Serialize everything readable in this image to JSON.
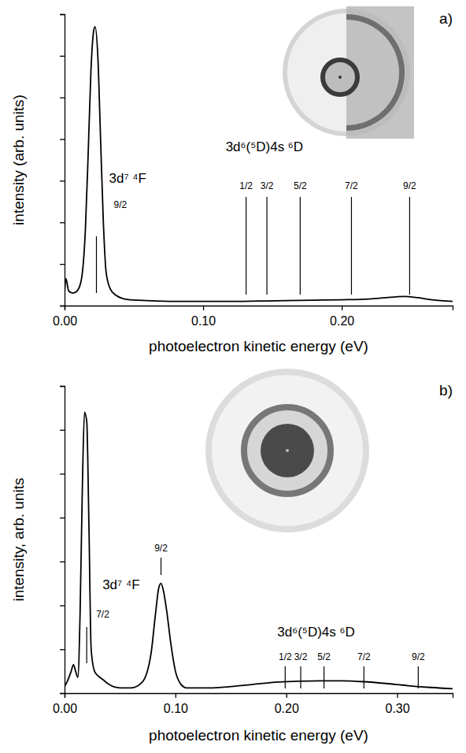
{
  "chart_data": [
    {
      "type": "line",
      "panel_label": "a)",
      "x_label": "photoelectron kinetic energy (eV)",
      "y_label": "intensity (arb. units)",
      "xlim": [
        0,
        0.28
      ],
      "xticks": [
        {
          "value": 0,
          "label": "0.00"
        },
        {
          "value": 0.1,
          "label": "0.10"
        },
        {
          "value": 0.2,
          "label": "0.20"
        }
      ],
      "ylim": [
        0,
        7
      ],
      "yticks": [
        0,
        1,
        2,
        3,
        4,
        5,
        6,
        7
      ],
      "tick_labels": "x",
      "x": [
        0,
        0.001,
        0.003,
        0.006,
        0.009,
        0.012,
        0.015,
        0.017,
        0.019,
        0.021,
        0.022,
        0.024,
        0.026,
        0.028,
        0.03,
        0.033,
        0.037,
        0.045,
        0.06,
        0.08,
        0.1,
        0.12,
        0.14,
        0.16,
        0.18,
        0.2,
        0.22,
        0.235,
        0.245,
        0.255,
        0.265,
        0.28
      ],
      "series": [
        {
          "color": "#000000",
          "values": [
            0.3,
            0.65,
            0.35,
            0.3,
            0.35,
            0.6,
            1.8,
            3.6,
            5.6,
            6.6,
            6.7,
            6.0,
            4.0,
            2.0,
            0.8,
            0.4,
            0.25,
            0.15,
            0.12,
            0.1,
            0.1,
            0.1,
            0.11,
            0.12,
            0.13,
            0.14,
            0.16,
            0.2,
            0.22,
            0.19,
            0.14,
            0.1
          ]
        }
      ],
      "annotations": [
        {
          "text": "3d⁷ ⁴F",
          "markers": [
            {
              "x": 0.023,
              "label": "9/2"
            }
          ]
        },
        {
          "text": "3d⁶(⁵D)4s ⁶D",
          "markers": [
            {
              "x": 0.131,
              "label": "1/2"
            },
            {
              "x": 0.146,
              "label": "3/2"
            },
            {
              "x": 0.17,
              "label": "5/2"
            },
            {
              "x": 0.207,
              "label": "7/2"
            },
            {
              "x": 0.249,
              "label": "9/2"
            }
          ]
        }
      ]
    },
    {
      "type": "line",
      "panel_label": "b)",
      "x_label": "photoelectron kinetic energy (eV)",
      "y_label": "intensity, arb. units",
      "xlim": [
        0,
        0.35
      ],
      "xticks": [
        {
          "value": 0,
          "label": "0.00"
        },
        {
          "value": 0.1,
          "label": "0.10"
        },
        {
          "value": 0.2,
          "label": "0.20"
        },
        {
          "value": 0.3,
          "label": "0.30"
        }
      ],
      "ylim": [
        0,
        7
      ],
      "yticks": [
        0,
        1,
        2,
        3,
        4,
        5,
        6,
        7
      ],
      "tick_labels": "x",
      "x": [
        0,
        0.003,
        0.006,
        0.008,
        0.01,
        0.012,
        0.014,
        0.016,
        0.018,
        0.02,
        0.022,
        0.024,
        0.027,
        0.03,
        0.035,
        0.04,
        0.05,
        0.06,
        0.07,
        0.078,
        0.082,
        0.085,
        0.087,
        0.089,
        0.092,
        0.096,
        0.1,
        0.105,
        0.11,
        0.13,
        0.15,
        0.17,
        0.19,
        0.21,
        0.23,
        0.25,
        0.27,
        0.29,
        0.31,
        0.33,
        0.35
      ],
      "series": [
        {
          "color": "#000000",
          "values": [
            0.15,
            0.3,
            0.5,
            0.65,
            0.5,
            0.36,
            1.8,
            4.6,
            6.4,
            6.2,
            3.8,
            1.0,
            0.5,
            0.4,
            0.3,
            0.2,
            0.12,
            0.12,
            0.25,
            0.9,
            1.8,
            2.4,
            2.5,
            2.35,
            1.9,
            1.1,
            0.5,
            0.2,
            0.12,
            0.12,
            0.15,
            0.2,
            0.25,
            0.27,
            0.28,
            0.28,
            0.26,
            0.22,
            0.17,
            0.13,
            0.1
          ]
        }
      ],
      "annotations": [
        {
          "text": "3d⁷ ⁴F",
          "markers": [
            {
              "x": 0.02,
              "label": "7/2"
            },
            {
              "x": 0.087,
              "label": "9/2"
            }
          ]
        },
        {
          "text": "3d⁶(⁵D)4s ⁶D",
          "markers": [
            {
              "x": 0.199,
              "label": "1/2"
            },
            {
              "x": 0.213,
              "label": "3/2"
            },
            {
              "x": 0.234,
              "label": "5/2"
            },
            {
              "x": 0.27,
              "label": "7/2"
            },
            {
              "x": 0.319,
              "label": "9/2"
            }
          ]
        }
      ]
    }
  ]
}
